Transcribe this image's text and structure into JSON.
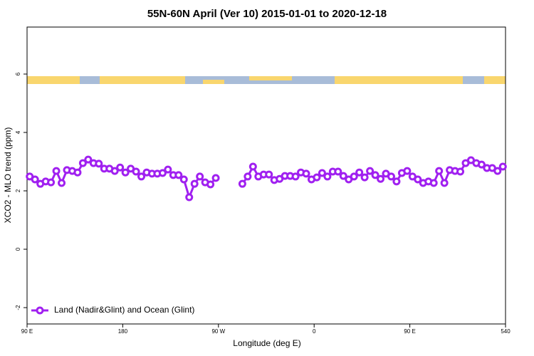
{
  "chart_data": {
    "type": "line",
    "title": "55N-60N April (Ver 10)   2015-01-01 to 2020-12-18",
    "x_label": "Longitude (deg E)",
    "y_label": "XCO2 - MLO trend (ppm)",
    "x": [
      92.5,
      97.5,
      102.5,
      107.5,
      112.5,
      117.5,
      122.5,
      127.5,
      132.5,
      137.5,
      142.5,
      147.5,
      152.5,
      157.5,
      162.5,
      167.5,
      172.5,
      177.5,
      182.5,
      187.5,
      192.5,
      197.5,
      202.5,
      207.5,
      212.5,
      217.5,
      222.5,
      227.5,
      232.5,
      237.5,
      242.5,
      247.5,
      252.5,
      257.5,
      262.5,
      267.5,
      272.5,
      277.5,
      282.5,
      287.5,
      292.5,
      297.5,
      302.5,
      307.5,
      312.5,
      317.5,
      322.5,
      327.5,
      332.5,
      337.5,
      342.5,
      347.5,
      352.5,
      357.5,
      362.5,
      367.5,
      372.5,
      377.5,
      382.5,
      387.5,
      392.5,
      397.5,
      402.5,
      407.5,
      412.5,
      417.5,
      422.5,
      427.5,
      432.5,
      437.5,
      442.5,
      447.5,
      452.5,
      457.5,
      462.5,
      467.5,
      472.5,
      477.5,
      482.5,
      487.5,
      492.5,
      497.5,
      502.5,
      507.5,
      512.5,
      517.5,
      522.5,
      527.5,
      532.5,
      537.5
    ],
    "series": [
      {
        "name": "Land (Nadir&Glint) and Ocean (Glint)",
        "color": "#a020f0",
        "values": [
          2.49,
          2.39,
          2.24,
          2.32,
          2.29,
          2.68,
          2.27,
          2.71,
          2.68,
          2.63,
          2.95,
          3.07,
          2.95,
          2.93,
          2.76,
          2.76,
          2.68,
          2.8,
          2.63,
          2.76,
          2.66,
          2.49,
          2.63,
          2.59,
          2.59,
          2.61,
          2.73,
          2.54,
          2.54,
          2.39,
          1.78,
          2.24,
          2.49,
          2.29,
          2.22,
          2.44,
          null,
          null,
          null,
          null,
          2.24,
          2.49,
          2.83,
          2.49,
          2.56,
          2.56,
          2.37,
          2.41,
          2.51,
          2.51,
          2.49,
          2.63,
          2.59,
          2.39,
          2.46,
          2.61,
          2.49,
          2.66,
          2.66,
          2.51,
          2.39,
          2.49,
          2.63,
          2.46,
          2.68,
          2.54,
          2.41,
          2.59,
          2.49,
          2.32,
          2.61,
          2.68,
          2.49,
          2.39,
          2.27,
          2.32,
          2.27,
          2.68,
          2.27,
          2.71,
          2.68,
          2.66,
          2.95,
          3.05,
          2.95,
          2.9,
          2.78,
          2.78,
          2.68,
          2.83
        ]
      }
    ],
    "xlim": [
      90,
      540
    ],
    "xticks": [
      {
        "value": 90,
        "label": "90 E"
      },
      180,
      {
        "value": 270,
        "label": "90 W"
      },
      {
        "value": 360,
        "label": "0"
      },
      {
        "value": 450,
        "label": "90 E"
      },
      540
    ],
    "ylim": [
      -2.56,
      7.61
    ],
    "yticks": [
      -2,
      0,
      2,
      4,
      6
    ],
    "legend": "bottom-left"
  }
}
